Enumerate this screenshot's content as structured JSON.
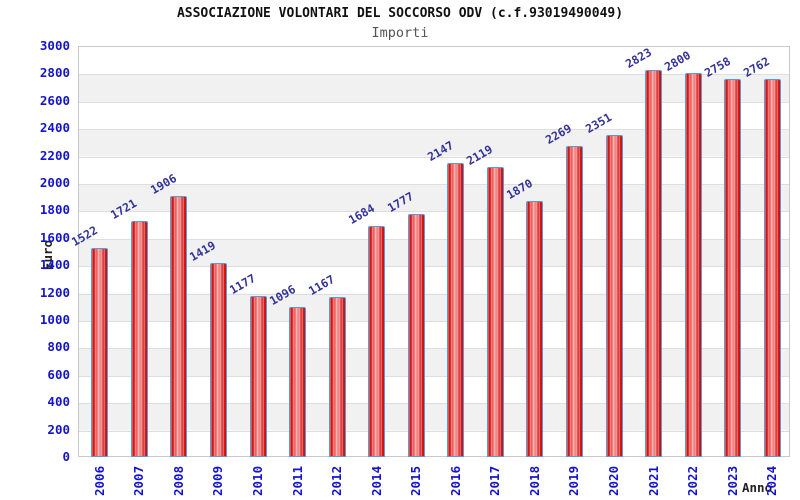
{
  "chart_data": {
    "type": "bar",
    "title": "ASSOCIAZIONE VOLONTARI DEL SOCCORSO ODV (c.f.93019490049)",
    "subtitle": "Importi",
    "xlabel": "Anno",
    "ylabel": "Euro",
    "categories": [
      "2006",
      "2007",
      "2008",
      "2009",
      "2010",
      "2011",
      "2012",
      "2014",
      "2015",
      "2016",
      "2017",
      "2018",
      "2019",
      "2020",
      "2021",
      "2022",
      "2023",
      "2024"
    ],
    "values": [
      1522,
      1721,
      1906,
      1419,
      1177,
      1096,
      1167,
      1684,
      1777,
      2147,
      2119,
      1870,
      2269,
      2351,
      2823,
      2800,
      2758,
      2762
    ],
    "ylim": [
      0,
      3000
    ],
    "ytick_step": 200,
    "grid": "horizontal-bands-alternating",
    "legend": "none",
    "colors": {
      "bar_fill_dark": "#d41515",
      "bar_fill_light": "#f59c9c",
      "bar_border": "#5b9bd5",
      "tick_label": "#1414cc",
      "value_label": "#333399",
      "axis_title": "#222222",
      "title": "#111111",
      "subtitle": "#555555",
      "band": "#f1f1f1",
      "gridline": "#dedede"
    }
  }
}
